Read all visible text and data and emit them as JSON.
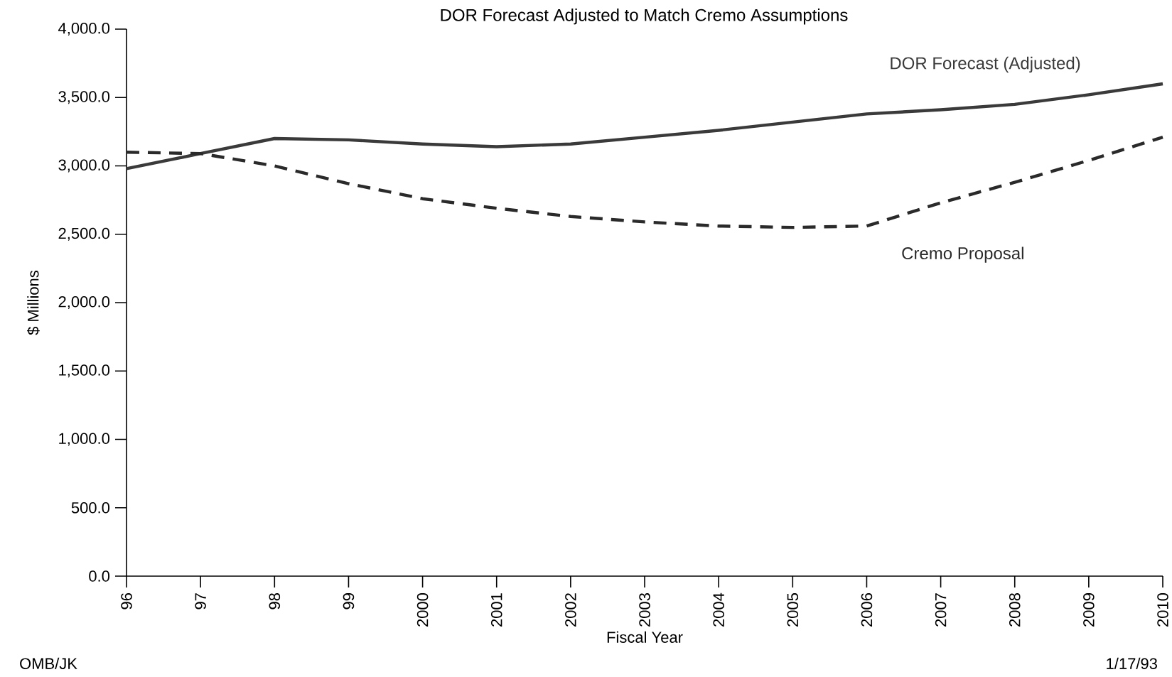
{
  "chart_data": {
    "type": "line",
    "title": "DOR Forecast Adjusted to Match Cremo Assumptions",
    "xlabel": "Fiscal Year",
    "ylabel": "$ Millions",
    "categories": [
      "96",
      "97",
      "98",
      "99",
      "2000",
      "2001",
      "2002",
      "2003",
      "2004",
      "2005",
      "2006",
      "2007",
      "2008",
      "2009",
      "2010"
    ],
    "series": [
      {
        "name": "DOR Forecast (Adjusted)",
        "color": "#3a3a3a",
        "line_style": "solid",
        "values": [
          2980,
          3090,
          3200,
          3190,
          3160,
          3140,
          3160,
          3210,
          3260,
          3320,
          3380,
          3410,
          3450,
          3520,
          3600
        ]
      },
      {
        "name": "Cremo Proposal",
        "color": "#2a2a2a",
        "line_style": "dashed",
        "values": [
          3100,
          3090,
          3000,
          2870,
          2760,
          2690,
          2630,
          2590,
          2560,
          2550,
          2560,
          2730,
          2880,
          3040,
          3210
        ]
      }
    ],
    "ylim": [
      0,
      4000
    ],
    "yticks": [
      {
        "value": 0,
        "label": "0.0"
      },
      {
        "value": 500,
        "label": "500.0"
      },
      {
        "value": 1000,
        "label": "1,000.0"
      },
      {
        "value": 1500,
        "label": "1,500.0"
      },
      {
        "value": 2000,
        "label": "2,000.0"
      },
      {
        "value": 2500,
        "label": "2,500.0"
      },
      {
        "value": 3000,
        "label": "3,000.0"
      },
      {
        "value": 3500,
        "label": "3,500.0"
      },
      {
        "value": 4000,
        "label": "4,000.0"
      }
    ],
    "grid": false,
    "marker": "none",
    "annotations": [
      "OMB/JK",
      "1/17/93"
    ]
  }
}
